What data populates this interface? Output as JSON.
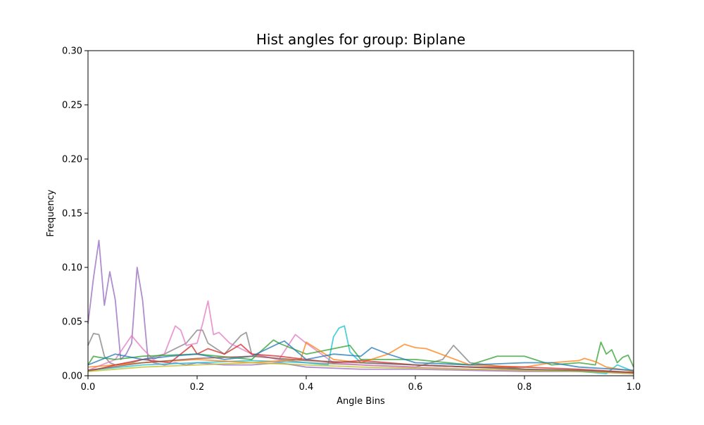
{
  "chart_data": {
    "type": "line",
    "title": "Hist angles for group: Biplane",
    "xlabel": "Angle Bins",
    "ylabel": "Frequency",
    "xlim": [
      0.0,
      1.0
    ],
    "ylim": [
      0.0,
      0.3
    ],
    "x_ticks": [
      "0.0",
      "0.2",
      "0.4",
      "0.6",
      "0.8",
      "1.0"
    ],
    "y_ticks": [
      "0.00",
      "0.05",
      "0.10",
      "0.15",
      "0.20",
      "0.25",
      "0.30"
    ],
    "grid": false,
    "legend": "none",
    "colors": [
      "#1f77b4",
      "#ff7f0e",
      "#2ca02c",
      "#d62728",
      "#9467bd",
      "#8c564b",
      "#e377c2",
      "#7f7f7f",
      "#bcbd22",
      "#17becf"
    ],
    "series": [
      {
        "color": "#9467bd",
        "x": [
          0.0,
          0.01,
          0.02,
          0.03,
          0.04,
          0.05,
          0.06,
          0.07,
          0.08,
          0.09,
          0.1,
          0.11,
          0.12,
          0.14,
          0.16,
          0.18,
          0.2,
          0.25,
          0.3,
          0.35,
          0.4,
          0.5,
          0.6,
          0.7,
          0.8,
          0.9,
          1.0
        ],
        "y": [
          0.048,
          0.09,
          0.125,
          0.065,
          0.096,
          0.07,
          0.015,
          0.02,
          0.03,
          0.1,
          0.07,
          0.015,
          0.012,
          0.01,
          0.012,
          0.01,
          0.012,
          0.01,
          0.01,
          0.012,
          0.008,
          0.006,
          0.006,
          0.005,
          0.004,
          0.004,
          0.002
        ]
      },
      {
        "color": "#7f7f7f",
        "x": [
          0.0,
          0.01,
          0.02,
          0.03,
          0.04,
          0.05,
          0.08,
          0.1,
          0.14,
          0.18,
          0.2,
          0.21,
          0.22,
          0.25,
          0.28,
          0.29,
          0.3,
          0.35,
          0.4,
          0.5,
          0.6,
          0.65,
          0.67,
          0.7,
          0.8,
          0.9,
          1.0
        ],
        "y": [
          0.028,
          0.039,
          0.038,
          0.018,
          0.012,
          0.01,
          0.012,
          0.015,
          0.02,
          0.03,
          0.042,
          0.042,
          0.03,
          0.02,
          0.037,
          0.04,
          0.02,
          0.015,
          0.012,
          0.01,
          0.008,
          0.015,
          0.028,
          0.012,
          0.006,
          0.005,
          0.003
        ]
      },
      {
        "color": "#e377c2",
        "x": [
          0.0,
          0.05,
          0.08,
          0.1,
          0.12,
          0.14,
          0.16,
          0.17,
          0.18,
          0.2,
          0.21,
          0.22,
          0.23,
          0.24,
          0.26,
          0.3,
          0.35,
          0.38,
          0.4,
          0.45,
          0.5,
          0.6,
          0.7,
          0.8,
          0.9,
          1.0
        ],
        "y": [
          0.005,
          0.015,
          0.037,
          0.025,
          0.015,
          0.02,
          0.046,
          0.042,
          0.028,
          0.03,
          0.048,
          0.069,
          0.038,
          0.04,
          0.03,
          0.02,
          0.015,
          0.038,
          0.03,
          0.012,
          0.01,
          0.008,
          0.006,
          0.005,
          0.004,
          0.002
        ]
      },
      {
        "color": "#17becf",
        "x": [
          0.0,
          0.1,
          0.2,
          0.3,
          0.4,
          0.44,
          0.45,
          0.46,
          0.47,
          0.48,
          0.5,
          0.6,
          0.7,
          0.8,
          0.85,
          0.9,
          0.95,
          0.97,
          1.0
        ],
        "y": [
          0.005,
          0.01,
          0.012,
          0.014,
          0.012,
          0.01,
          0.036,
          0.044,
          0.046,
          0.022,
          0.012,
          0.01,
          0.008,
          0.006,
          0.005,
          0.004,
          0.002,
          0.01,
          0.004
        ]
      },
      {
        "color": "#2ca02c",
        "x": [
          0.0,
          0.01,
          0.02,
          0.05,
          0.1,
          0.2,
          0.3,
          0.34,
          0.35,
          0.4,
          0.48,
          0.5,
          0.6,
          0.7,
          0.75,
          0.8,
          0.85,
          0.9,
          0.93,
          0.94,
          0.95,
          0.96,
          0.97,
          0.98,
          0.99,
          1.0
        ],
        "y": [
          0.01,
          0.018,
          0.017,
          0.015,
          0.018,
          0.02,
          0.015,
          0.033,
          0.03,
          0.02,
          0.028,
          0.015,
          0.015,
          0.01,
          0.018,
          0.018,
          0.01,
          0.012,
          0.01,
          0.031,
          0.02,
          0.024,
          0.012,
          0.017,
          0.019,
          0.008
        ]
      },
      {
        "color": "#ff7f0e",
        "x": [
          0.0,
          0.1,
          0.2,
          0.3,
          0.39,
          0.4,
          0.45,
          0.5,
          0.55,
          0.58,
          0.6,
          0.62,
          0.7,
          0.8,
          0.85,
          0.9,
          0.91,
          0.93,
          0.95,
          1.0
        ],
        "y": [
          0.008,
          0.012,
          0.015,
          0.012,
          0.015,
          0.031,
          0.015,
          0.012,
          0.02,
          0.029,
          0.026,
          0.025,
          0.01,
          0.008,
          0.012,
          0.014,
          0.016,
          0.013,
          0.008,
          0.004
        ]
      },
      {
        "color": "#d62728",
        "x": [
          0.0,
          0.05,
          0.1,
          0.15,
          0.19,
          0.2,
          0.22,
          0.25,
          0.28,
          0.3,
          0.35,
          0.4,
          0.45,
          0.5,
          0.55,
          0.6,
          0.7,
          0.8,
          0.9,
          1.0
        ],
        "y": [
          0.004,
          0.01,
          0.015,
          0.012,
          0.028,
          0.02,
          0.025,
          0.02,
          0.029,
          0.02,
          0.018,
          0.015,
          0.012,
          0.014,
          0.012,
          0.01,
          0.008,
          0.008,
          0.006,
          0.003
        ]
      },
      {
        "color": "#1f77b4",
        "x": [
          0.0,
          0.05,
          0.1,
          0.15,
          0.2,
          0.25,
          0.3,
          0.35,
          0.36,
          0.4,
          0.45,
          0.5,
          0.52,
          0.55,
          0.6,
          0.7,
          0.8,
          0.85,
          0.9,
          1.0
        ],
        "y": [
          0.01,
          0.02,
          0.015,
          0.018,
          0.02,
          0.015,
          0.018,
          0.03,
          0.032,
          0.015,
          0.02,
          0.018,
          0.026,
          0.02,
          0.012,
          0.01,
          0.012,
          0.012,
          0.008,
          0.005
        ]
      },
      {
        "color": "#bcbd22",
        "x": [
          0.0,
          0.1,
          0.2,
          0.3,
          0.4,
          0.5,
          0.6,
          0.7,
          0.8,
          0.9,
          1.0
        ],
        "y": [
          0.004,
          0.008,
          0.01,
          0.012,
          0.01,
          0.008,
          0.007,
          0.006,
          0.005,
          0.004,
          0.002
        ]
      },
      {
        "color": "#8c564b",
        "x": [
          0.0,
          0.1,
          0.2,
          0.3,
          0.4,
          0.5,
          0.6,
          0.7,
          0.8,
          0.9,
          1.0
        ],
        "y": [
          0.005,
          0.012,
          0.016,
          0.018,
          0.014,
          0.012,
          0.01,
          0.008,
          0.006,
          0.005,
          0.003
        ]
      }
    ]
  }
}
